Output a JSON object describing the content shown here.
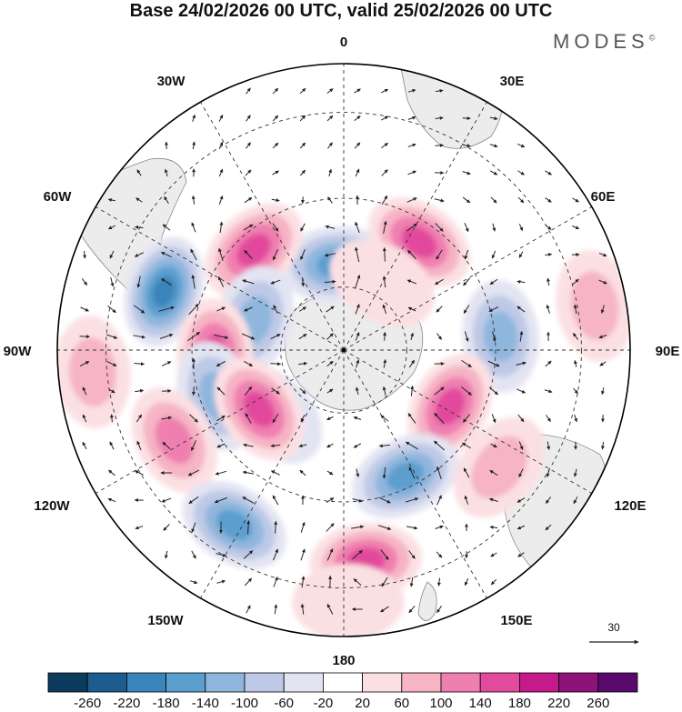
{
  "title": "Base 24/02/2026 00 UTC, valid 25/02/2026 00 UTC",
  "brand": "MODES",
  "brand_mark": "©",
  "longitude_labels": {
    "lon_0": "0",
    "lon_30e": "30E",
    "lon_60e": "60E",
    "lon_90e": "90E",
    "lon_120e": "120E",
    "lon_150e": "150E",
    "lon_180": "180",
    "lon_150w": "150W",
    "lon_120w": "120W",
    "lon_90w": "90W",
    "lon_60w": "60W",
    "lon_30w": "30W"
  },
  "vector_scale": {
    "label": "30"
  },
  "colorbar": {
    "ticks": [
      "-260",
      "-220",
      "-180",
      "-140",
      "-100",
      "-60",
      "-20",
      "20",
      "60",
      "100",
      "140",
      "180",
      "220",
      "260"
    ],
    "colors": [
      "#0d3b5e",
      "#1d5c8e",
      "#3b84bb",
      "#5b9fcf",
      "#8fb6dd",
      "#bdc9e6",
      "#e3e4f2",
      "#ffffff",
      "#fbe0e3",
      "#f6b4c4",
      "#ef7fb0",
      "#e24a9c",
      "#c51b8a",
      "#8d1279",
      "#5a0a6c"
    ]
  },
  "chart_data": {
    "type": "heatmap",
    "title": "Base 24/02/2026 00 UTC, valid 25/02/2026 00 UTC",
    "projection": "south-polar-stereographic",
    "field": "anomaly shading with wind vectors",
    "levels": [
      -260,
      -220,
      -180,
      -140,
      -100,
      -60,
      -20,
      20,
      60,
      100,
      140,
      180,
      220,
      260
    ],
    "vector_reference": 30,
    "cells": [
      {
        "label": "low-1",
        "lat_frac": 0.3,
        "lon": -5,
        "value": -150
      },
      {
        "label": "high-1",
        "lat_frac": 0.47,
        "lon": -42,
        "value": 140
      },
      {
        "label": "high-2",
        "lat_frac": 0.46,
        "lon": 35,
        "value": 140
      },
      {
        "label": "low-2",
        "lat_frac": 0.66,
        "lon": -72,
        "value": -190
      },
      {
        "label": "low-3",
        "lat_frac": 0.33,
        "lon": -72,
        "value": -110
      },
      {
        "label": "high-3",
        "lat_frac": 0.45,
        "lon": -92,
        "value": 160
      },
      {
        "label": "low-4",
        "lat_frac": 0.55,
        "lon": 85,
        "value": -120
      },
      {
        "label": "high-4",
        "lat_frac": 0.88,
        "lon": -95,
        "value": 60
      },
      {
        "label": "high-5",
        "lat_frac": 0.89,
        "lon": 80,
        "value": 60
      },
      {
        "label": "low-5",
        "lat_frac": 0.47,
        "lon": -110,
        "value": -130
      },
      {
        "label": "high-6",
        "lat_frac": 0.42,
        "lon": 118,
        "value": 150
      },
      {
        "label": "low-6",
        "lat_frac": 0.33,
        "lon": -133,
        "value": -30
      },
      {
        "label": "high-7",
        "lat_frac": 0.36,
        "lon": -125,
        "value": 140
      },
      {
        "label": "high-8",
        "lat_frac": 0.67,
        "lon": -118,
        "value": 120
      },
      {
        "label": "low-7",
        "lat_frac": 0.49,
        "lon": 154,
        "value": -170
      },
      {
        "label": "high-9",
        "lat_frac": 0.68,
        "lon": 127,
        "value": 60
      },
      {
        "label": "low-8",
        "lat_frac": 0.72,
        "lon": -148,
        "value": -160
      },
      {
        "label": "high-10",
        "lat_frac": 0.74,
        "lon": 174,
        "value": 140
      },
      {
        "label": "high-11",
        "lat_frac": 0.88,
        "lon": 179,
        "value": 50
      },
      {
        "label": "high-12",
        "lat_frac": 0.27,
        "lon": 30,
        "value": 40
      }
    ]
  }
}
